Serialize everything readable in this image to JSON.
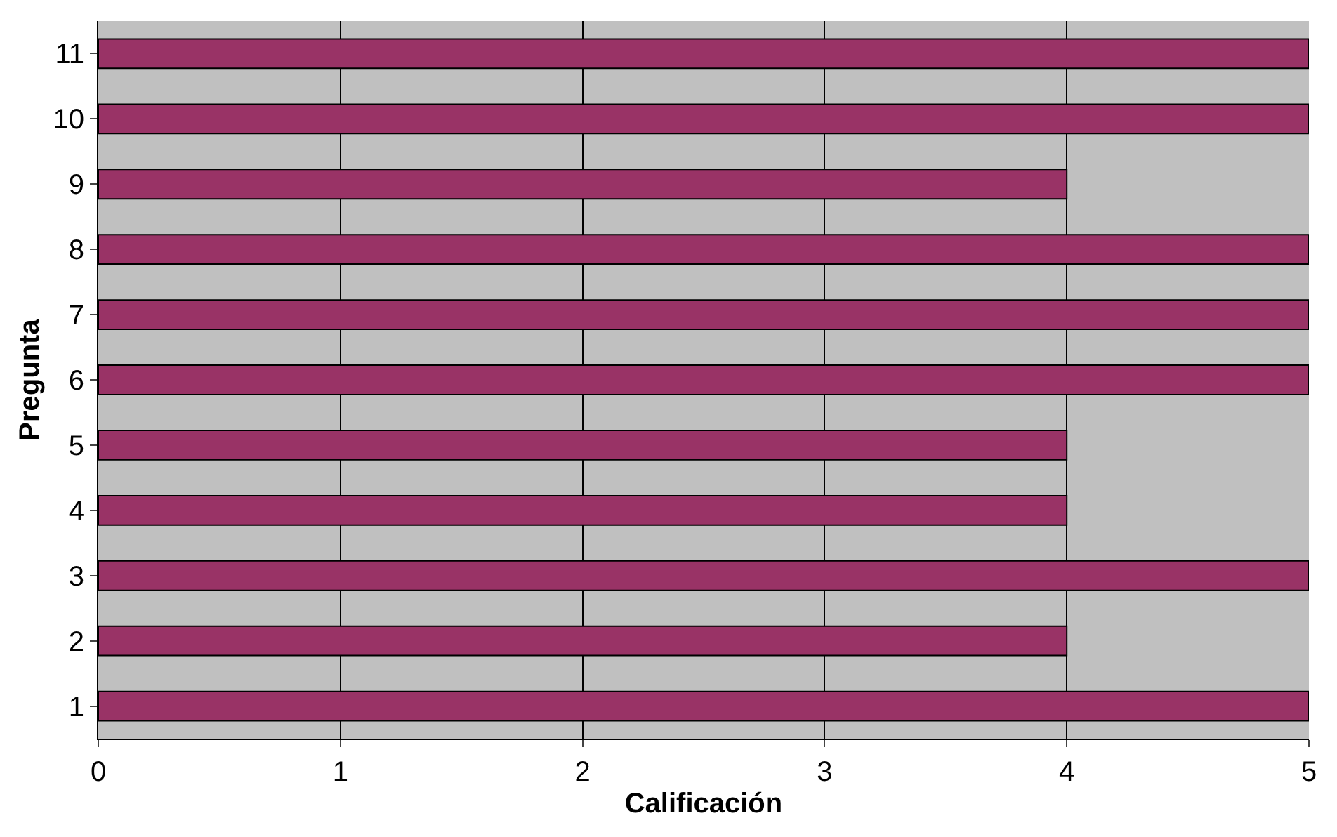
{
  "chart_data": {
    "type": "bar",
    "orientation": "horizontal",
    "xlabel": "Calificación",
    "ylabel": "Pregunta",
    "categories": [
      "11",
      "10",
      "9",
      "8",
      "7",
      "6",
      "5",
      "4",
      "3",
      "2",
      "1"
    ],
    "values": [
      5,
      5,
      4,
      5,
      5,
      5,
      4,
      4,
      5,
      4,
      5
    ],
    "color": "#993366",
    "xlim": [
      0,
      5
    ],
    "xticks": [
      0,
      1,
      2,
      3,
      4,
      5
    ],
    "grid": "x",
    "legend": false
  }
}
